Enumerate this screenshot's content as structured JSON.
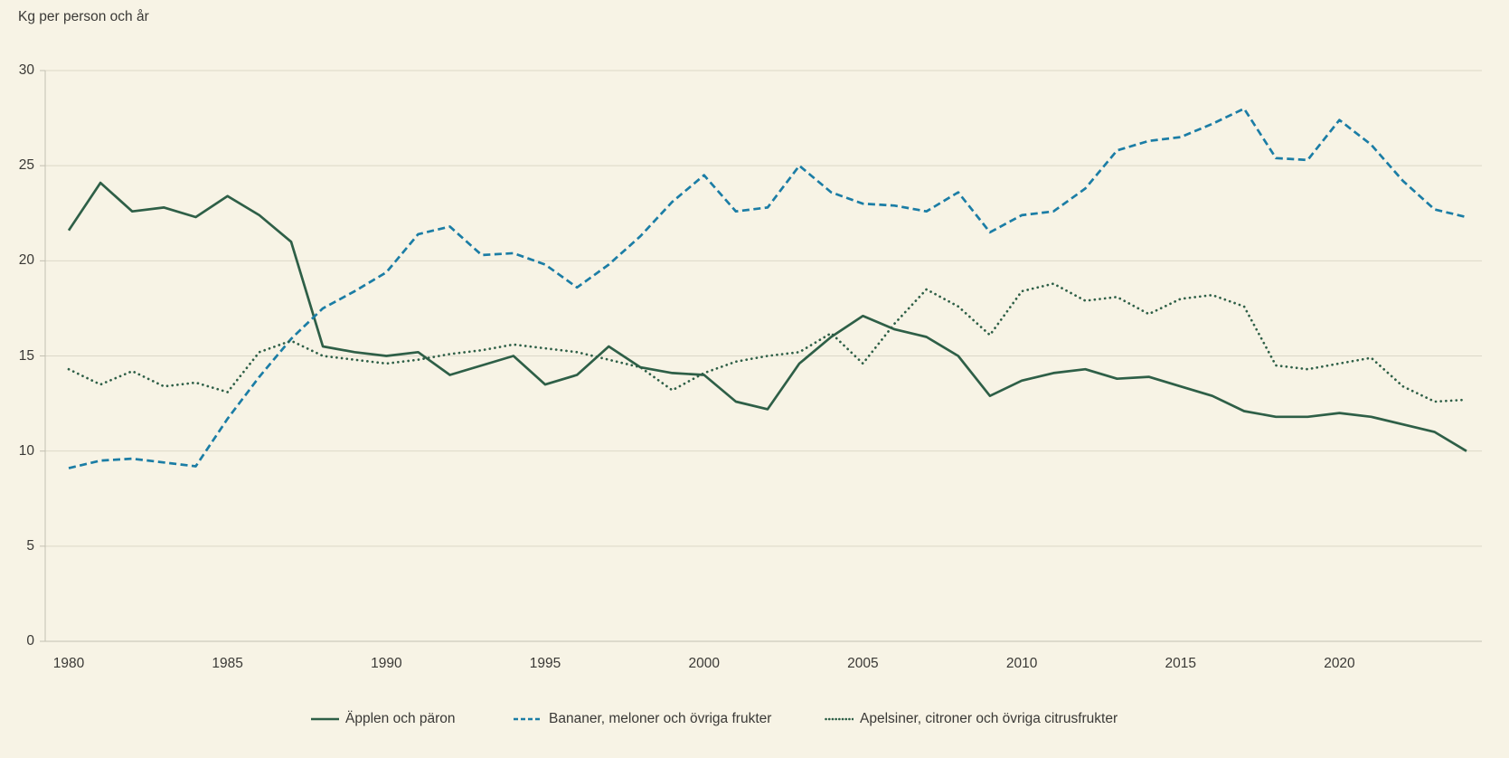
{
  "title": "Kg per person och år",
  "colors": {
    "background": "#f7f3e5",
    "gridline": "#dcd8c8",
    "axis": "#c3c0b2",
    "text": "#3a3936",
    "apples_green": "#2e5f47",
    "bananas_blue": "#1b7da5"
  },
  "chart_data": {
    "type": "line",
    "title": "Kg per person och år",
    "xlabel": "",
    "ylabel": "Kg per person och år",
    "ylim": [
      0,
      30
    ],
    "y_ticks": [
      0,
      5,
      10,
      15,
      20,
      25,
      30
    ],
    "x_ticks": [
      1980,
      1985,
      1990,
      1995,
      2000,
      2005,
      2010,
      2015,
      2020
    ],
    "grid": true,
    "legend_position": "bottom",
    "x": [
      1980,
      1981,
      1982,
      1983,
      1984,
      1985,
      1986,
      1987,
      1988,
      1989,
      1990,
      1991,
      1992,
      1993,
      1994,
      1995,
      1996,
      1997,
      1998,
      1999,
      2000,
      2001,
      2002,
      2003,
      2004,
      2005,
      2006,
      2007,
      2008,
      2009,
      2010,
      2011,
      2012,
      2013,
      2014,
      2015,
      2016,
      2017,
      2018,
      2019,
      2020,
      2021,
      2022,
      2023,
      2024
    ],
    "series": [
      {
        "name": "Äpplen och päron",
        "style": "solid",
        "color": "#2e5f47",
        "values": [
          21.6,
          24.1,
          22.6,
          22.8,
          22.3,
          23.4,
          22.4,
          21.0,
          15.5,
          15.2,
          15.0,
          15.2,
          14.0,
          14.5,
          15.0,
          13.5,
          14.0,
          15.5,
          14.4,
          14.1,
          14.0,
          12.6,
          12.2,
          14.6,
          16.0,
          17.1,
          16.4,
          16.0,
          15.0,
          12.9,
          13.7,
          14.1,
          14.3,
          13.8,
          13.9,
          13.4,
          12.9,
          12.1,
          11.8,
          11.8,
          12.0,
          11.8,
          11.4,
          11.0,
          10.0
        ]
      },
      {
        "name": "Bananer, meloner och övriga frukter",
        "style": "dashed",
        "color": "#1b7da5",
        "values": [
          9.1,
          9.5,
          9.6,
          9.4,
          9.2,
          11.7,
          13.9,
          15.9,
          17.5,
          18.4,
          19.4,
          21.4,
          21.8,
          20.3,
          20.4,
          19.8,
          18.6,
          19.8,
          21.3,
          23.1,
          24.5,
          22.6,
          22.8,
          25.0,
          23.6,
          23.0,
          22.9,
          22.6,
          23.6,
          21.5,
          22.4,
          22.6,
          23.8,
          25.8,
          26.3,
          26.5,
          27.2,
          28.0,
          25.4,
          25.3,
          27.4,
          26.1,
          24.2,
          22.7,
          22.3
        ]
      },
      {
        "name": "Apelsiner, citroner och övriga citrusfrukter",
        "style": "dotted",
        "color": "#2e5f47",
        "values": [
          14.3,
          13.5,
          14.2,
          13.4,
          13.6,
          13.1,
          15.2,
          15.8,
          15.0,
          14.8,
          14.6,
          14.8,
          15.1,
          15.3,
          15.6,
          15.4,
          15.2,
          14.8,
          14.4,
          13.2,
          14.1,
          14.7,
          15.0,
          15.2,
          16.2,
          14.6,
          16.7,
          18.5,
          17.6,
          16.1,
          18.4,
          18.8,
          17.9,
          18.1,
          17.2,
          18.0,
          18.2,
          17.6,
          14.5,
          14.3,
          14.6,
          14.9,
          13.4,
          12.6,
          12.7
        ]
      }
    ]
  }
}
